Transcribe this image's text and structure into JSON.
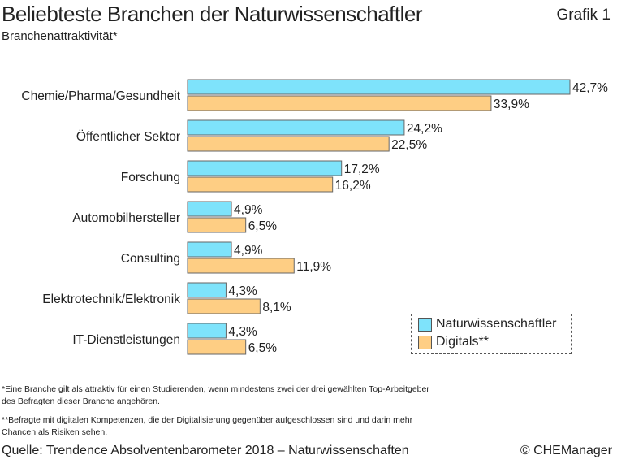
{
  "title": "Beliebteste Branchen der Naturwissenschaftler",
  "figure_label": "Grafik 1",
  "subtitle": "Branchenattraktivität*",
  "footnotes": [
    "*Eine Branche gilt als attraktiv für einen Studierenden, wenn mindestens zwei der drei gewählten Top-Arbeitgeber des Befragten dieser Branche angehören.",
    "**Befragte mit digitalen Kompetenzen, die der Digitalisierung gegenüber aufgeschlossen sind und darin mehr Chancen als Risiken sehen."
  ],
  "source": "Quelle: Trendence Absolventenbarometer 2018 – Naturwissenschaften",
  "copyright": "© CHEManager",
  "chart_data": {
    "type": "bar",
    "orientation": "horizontal",
    "categories": [
      "Chemie/Pharma/Gesundheit",
      "Öffentlicher Sektor",
      "Forschung",
      "Automobilhersteller",
      "Consulting",
      "Elektrotechnik/Elektronik",
      "IT-Dienstleistungen"
    ],
    "series": [
      {
        "name": "Naturwissenschaftler",
        "color": "#7ee3fb",
        "values": [
          42.7,
          24.2,
          17.2,
          4.9,
          4.9,
          4.3,
          4.3
        ],
        "labels": [
          "42,7%",
          "24,2%",
          "17,2%",
          "4,9%",
          "4,9%",
          "4,3%",
          "4,3%"
        ]
      },
      {
        "name": "Digitals**",
        "color": "#fece84",
        "values": [
          33.9,
          22.5,
          16.2,
          6.5,
          11.9,
          8.1,
          6.5
        ],
        "labels": [
          "33,9%",
          "22,5%",
          "16,2%",
          "6,5%",
          "11,9%",
          "8,1%",
          "6,5%"
        ]
      }
    ],
    "unit": "%",
    "legend": "bottom-right",
    "grid": false
  }
}
